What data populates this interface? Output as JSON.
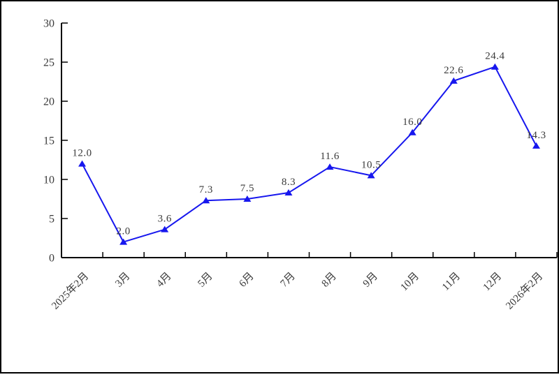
{
  "chart_data": {
    "type": "line",
    "categories": [
      "2025年2月",
      "3月",
      "4月",
      "5月",
      "6月",
      "7月",
      "8月",
      "9月",
      "10月",
      "11月",
      "12月",
      "2026年2月"
    ],
    "values": [
      12.0,
      2.0,
      3.6,
      7.3,
      7.5,
      8.3,
      11.6,
      10.5,
      16.0,
      22.6,
      24.4,
      14.3
    ],
    "data_labels": [
      "12.0",
      "2.0",
      "3.6",
      "7.3",
      "7.5",
      "8.3",
      "11.6",
      "10.5",
      "16.0",
      "22.6",
      "24.4",
      "14.3"
    ],
    "title": "",
    "xlabel": "",
    "ylabel": "",
    "ylim": [
      0,
      30
    ],
    "yticks": [
      0,
      5,
      10,
      15,
      20,
      25,
      30
    ],
    "grid": false,
    "legend": "none",
    "marker": "triangle-up",
    "colors": {
      "series": "#1717ee",
      "label": "#3a3a3a",
      "axis": "#000000",
      "frame": "#000000",
      "background": "#ffffff"
    }
  }
}
